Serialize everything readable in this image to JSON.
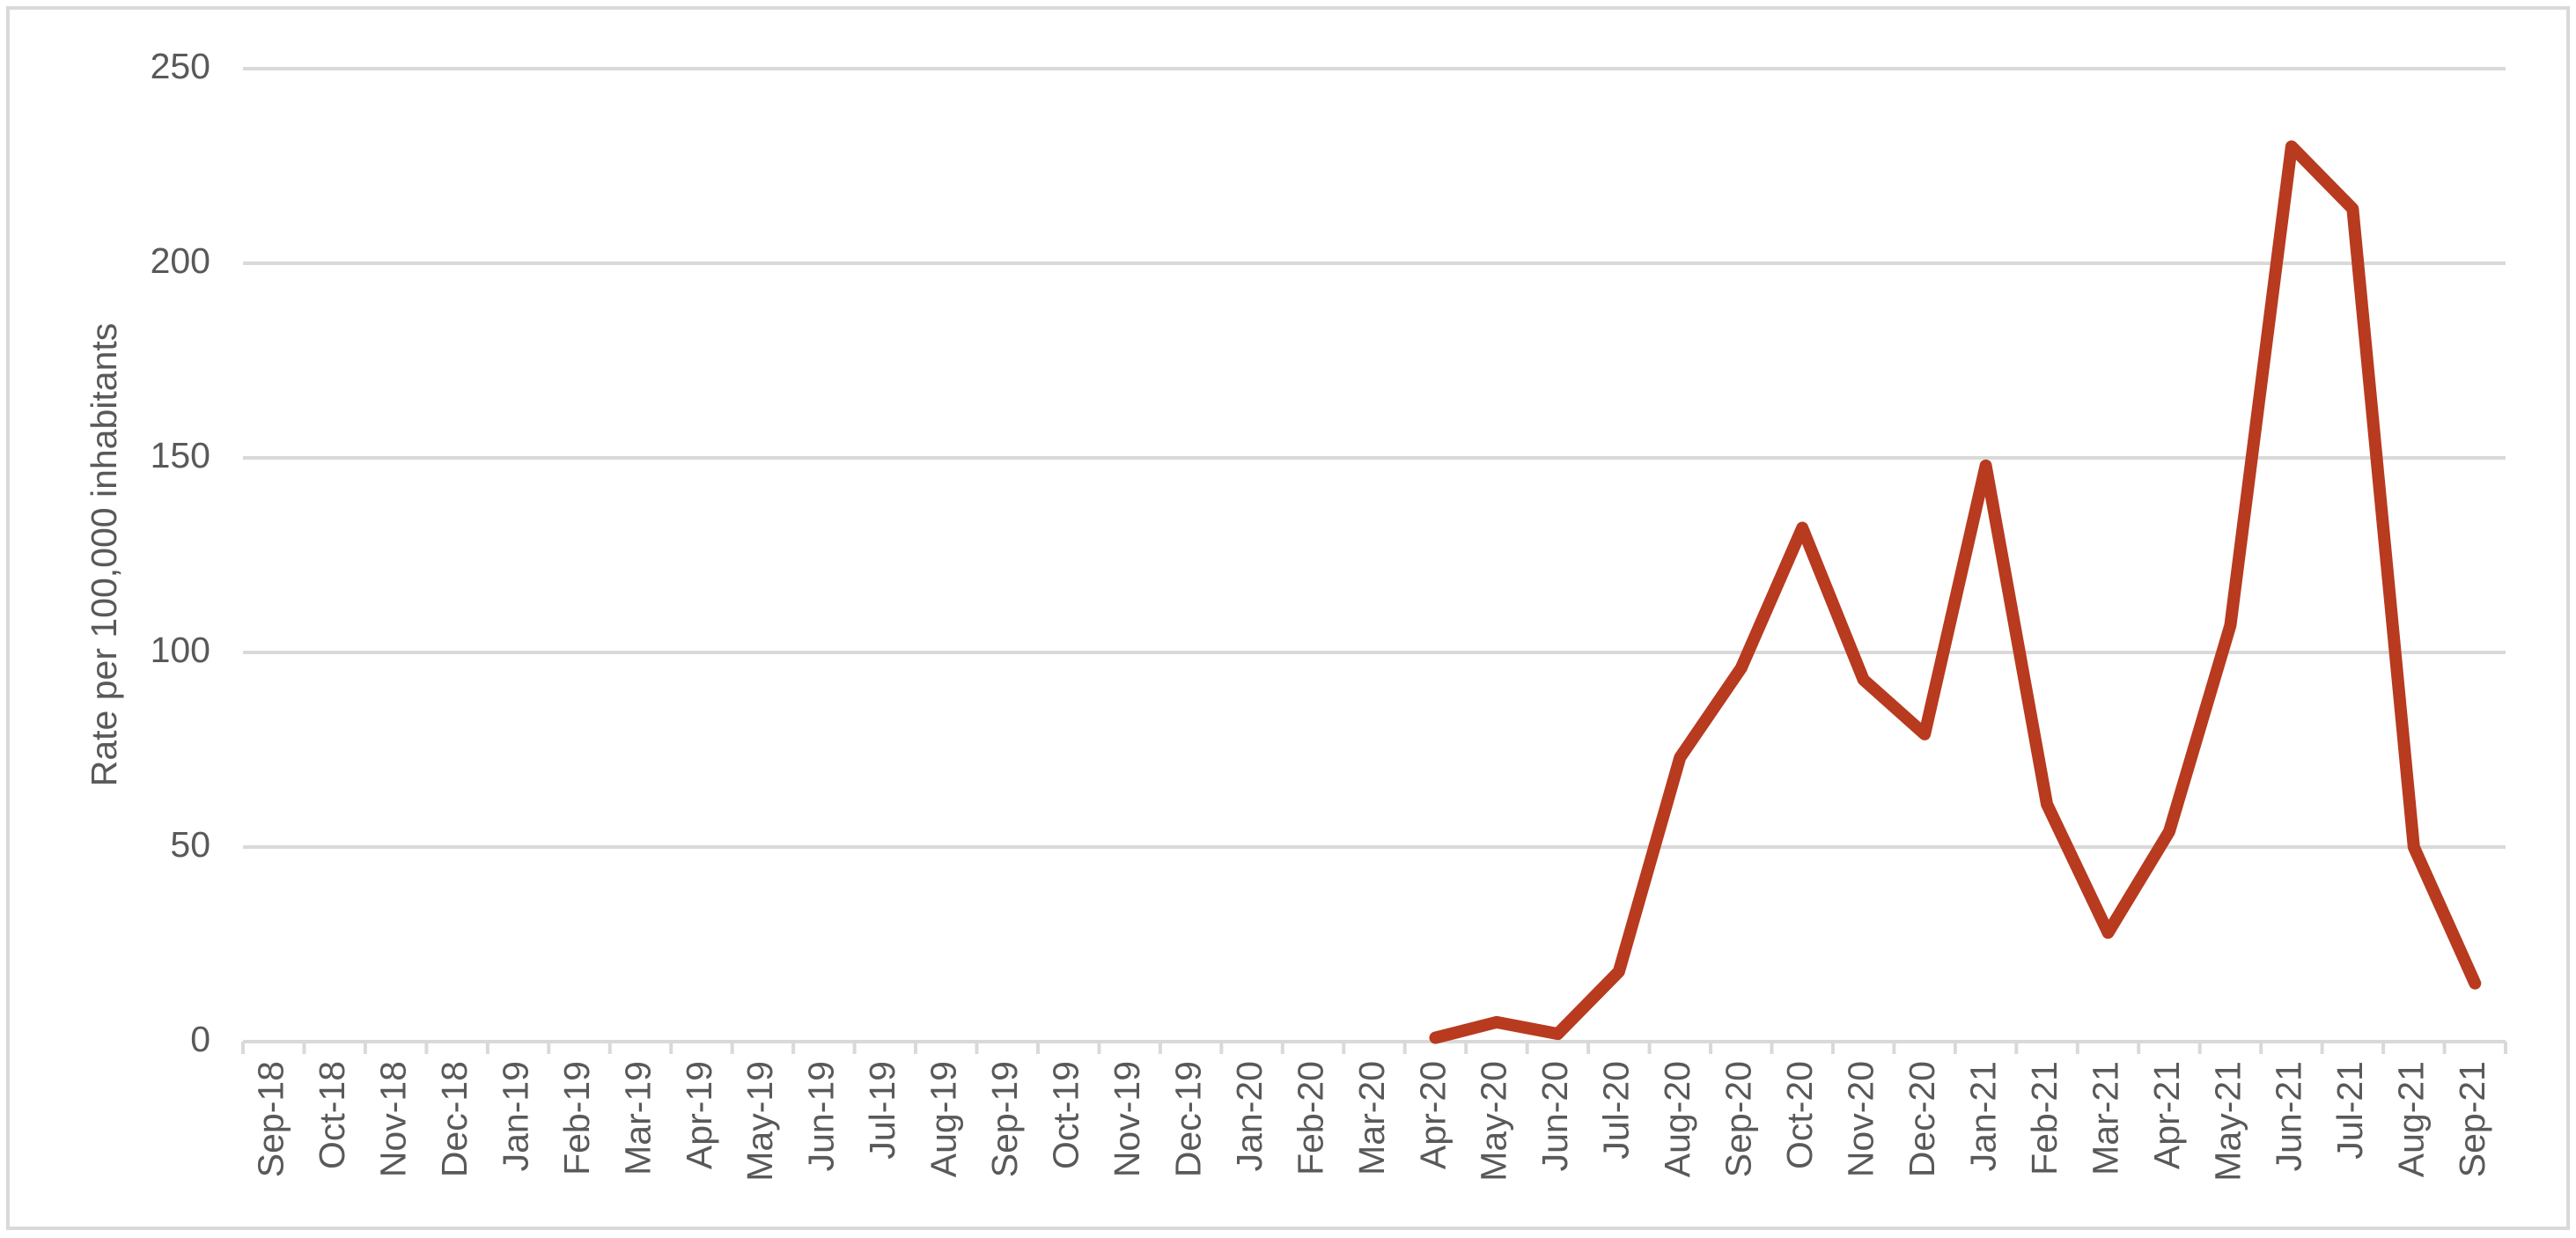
{
  "chart_data": {
    "type": "line",
    "y_label": "Rate per 100,000 inhabitants",
    "categories": [
      "Sep-18",
      "Oct-18",
      "Nov-18",
      "Dec-18",
      "Jan-19",
      "Feb-19",
      "Mar-19",
      "Apr-19",
      "May-19",
      "Jun-19",
      "Jul-19",
      "Aug-19",
      "Sep-19",
      "Oct-19",
      "Nov-19",
      "Dec-19",
      "Jan-20",
      "Feb-20",
      "Mar-20",
      "Apr-20",
      "May-20",
      "Jun-20",
      "Jul-20",
      "Aug-20",
      "Sep-20",
      "Oct-20",
      "Nov-20",
      "Dec-20",
      "Jan-21",
      "Feb-21",
      "Mar-21",
      "Apr-21",
      "May-21",
      "Jun-21",
      "Jul-21",
      "Aug-21",
      "Sep-21"
    ],
    "values": [
      null,
      null,
      null,
      null,
      null,
      null,
      null,
      null,
      null,
      null,
      null,
      null,
      null,
      null,
      null,
      null,
      null,
      null,
      null,
      1,
      5,
      2,
      18,
      73,
      96,
      132,
      93,
      79,
      148,
      61,
      28,
      54,
      107,
      230,
      214,
      50,
      15
    ],
    "color": "#b83a1f",
    "ylim": [
      0,
      250
    ],
    "yticks": [
      0,
      50,
      100,
      150,
      200,
      250
    ],
    "grid": true
  }
}
